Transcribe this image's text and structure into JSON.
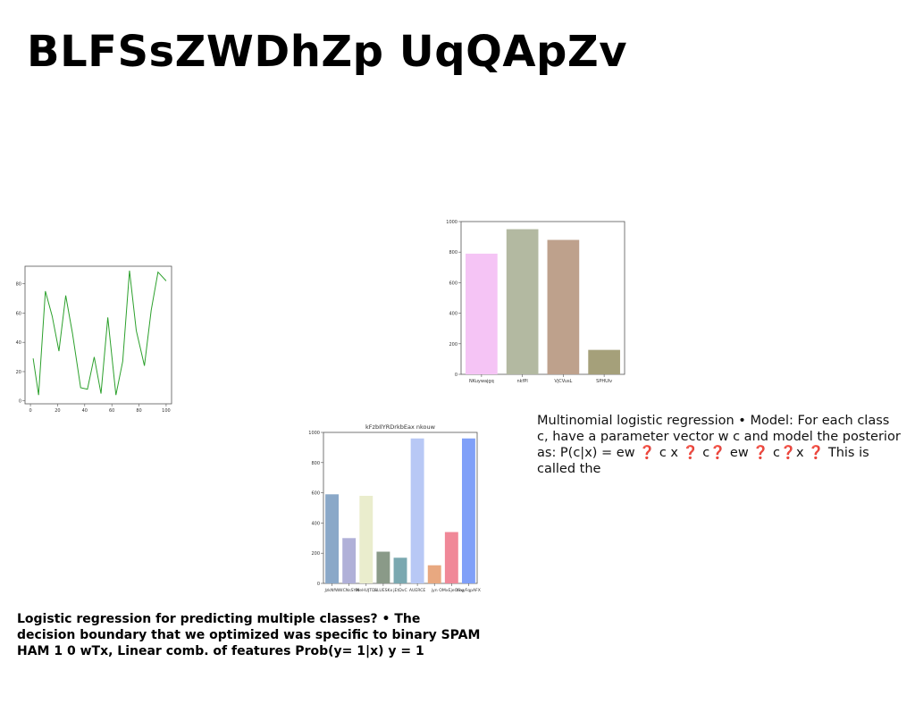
{
  "slide": {
    "title": "BLFSsZWDhZp UqQApZv",
    "body_text": "Multinomial logistic regression • Model: For each class c, have a parameter vector w c and model the posterior as: P(c|x) = ew ❓ c x ❓ c❓ ew ❓ c❓x ❓ This is called the",
    "footer_text": "Logistic regression for predicting multiple classes? • The decision boundary that we optimized was specific to binary SPAM HAM 1 0 wTx, Linear comb. of features Prob(y= 1|x) y = 1"
  },
  "chart_data": [
    {
      "type": "line",
      "title": "",
      "color": "#2ca02c",
      "x": [
        2,
        6,
        11,
        16,
        21,
        26,
        31,
        37,
        42,
        47,
        52,
        57,
        63,
        68,
        73,
        78,
        84,
        89,
        94,
        100
      ],
      "y": [
        29,
        4,
        75,
        58,
        34,
        72,
        46,
        9,
        8,
        30,
        5,
        57,
        4,
        27,
        89,
        48,
        24,
        62,
        88,
        82
      ],
      "xlim": [
        -4,
        104
      ],
      "ylim": [
        -2,
        92
      ],
      "xticks": [
        0,
        20,
        40,
        60,
        80,
        100
      ],
      "yticks": [
        0,
        20,
        40,
        60,
        80
      ]
    },
    {
      "type": "bar",
      "title": "",
      "categories": [
        "NKuywajgq",
        "nkfPl",
        "VjCVusL",
        "SPHUlv"
      ],
      "values": [
        790,
        950,
        880,
        160
      ],
      "colors": [
        "#f5c4f5",
        "#b3b9a1",
        "#bea18c",
        "#a5a07a"
      ],
      "ylim": [
        0,
        1000
      ],
      "yticks": [
        0,
        200,
        400,
        600,
        800,
        1000
      ]
    },
    {
      "type": "bar",
      "title": "kFzbIlYRDrkbEax nkouw",
      "categories": [
        "JzkNfW",
        "WCNsSYM",
        "iNeHUJTDs",
        "GLUESKx",
        "jEtDvC",
        "AUERCE",
        "jyn",
        "OMxEjeOmy",
        "lSxyFqpAFX"
      ],
      "values": [
        590,
        300,
        580,
        210,
        170,
        960,
        120,
        340,
        960
      ],
      "colors": [
        "#8aa8c8",
        "#b0b0d8",
        "#eaedcd",
        "#8a9a88",
        "#7aa8b0",
        "#b8c8f5",
        "#e8a880",
        "#f08898",
        "#80a0f8"
      ],
      "ylim": [
        0,
        1000
      ],
      "yticks": [
        0,
        200,
        400,
        600,
        800,
        1000
      ]
    }
  ]
}
